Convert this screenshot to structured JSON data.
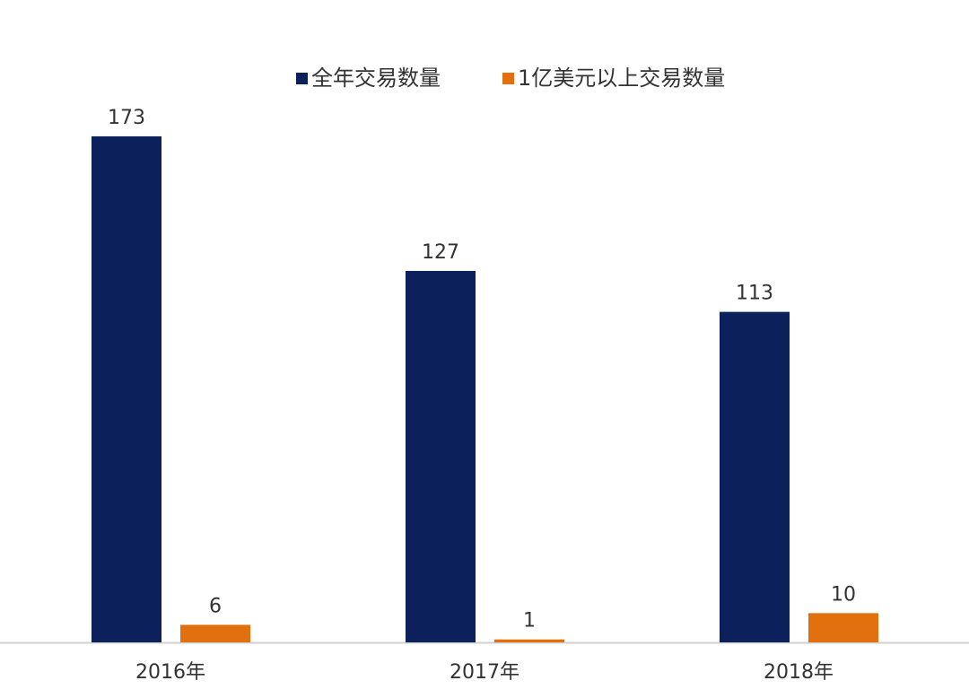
{
  "chart_data": {
    "type": "bar",
    "categories": [
      "2016年",
      "2017年",
      "2018年"
    ],
    "series": [
      {
        "name": "全年交易数量",
        "color": "#0c215c",
        "values": [
          173,
          127,
          113
        ]
      },
      {
        "name": "1亿美元以上交易数量",
        "color": "#e2700f",
        "values": [
          6,
          1,
          10
        ]
      }
    ],
    "legend": "top"
  }
}
